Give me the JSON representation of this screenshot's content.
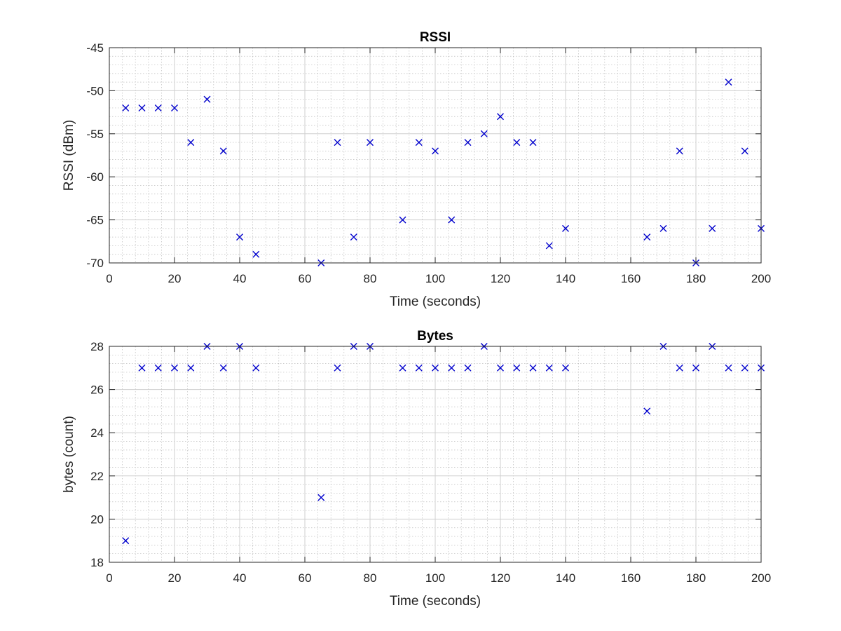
{
  "colors": {
    "marker": "#0000cc",
    "axis": "#262626",
    "grid_major": "#cfcfcf",
    "grid_minor": "#bdbdbd",
    "background": "#ffffff"
  },
  "chart_data": [
    {
      "type": "scatter",
      "title": "RSSI",
      "xlabel": "Time (seconds)",
      "ylabel": "RSSI (dBm)",
      "xlim": [
        0,
        200
      ],
      "ylim": [
        -70,
        -45
      ],
      "xticks": [
        0,
        20,
        40,
        60,
        80,
        100,
        120,
        140,
        160,
        180,
        200
      ],
      "yticks": [
        -70,
        -65,
        -60,
        -55,
        -50,
        -45
      ],
      "grid": "major and minor",
      "marker": "x",
      "series": [
        {
          "x": [
            5,
            10,
            15,
            20,
            25,
            30,
            35,
            40,
            45,
            65,
            70,
            75,
            80,
            90,
            95,
            100,
            105,
            110,
            115,
            120,
            125,
            130,
            135,
            140,
            165,
            170,
            175,
            180,
            185,
            190,
            195,
            200
          ],
          "y": [
            -52,
            -52,
            -52,
            -52,
            -56,
            -51,
            -57,
            -67,
            -69,
            -70,
            -56,
            -67,
            -56,
            -65,
            -56,
            -57,
            -65,
            -56,
            -55,
            -53,
            -56,
            -56,
            -68,
            -66,
            -67,
            -66,
            -57,
            -70,
            -66,
            -49,
            -57,
            -66
          ]
        }
      ]
    },
    {
      "type": "scatter",
      "title": "Bytes",
      "xlabel": "Time (seconds)",
      "ylabel": "bytes (count)",
      "xlim": [
        0,
        200
      ],
      "ylim": [
        18,
        28
      ],
      "xticks": [
        0,
        20,
        40,
        60,
        80,
        100,
        120,
        140,
        160,
        180,
        200
      ],
      "yticks": [
        18,
        20,
        22,
        24,
        26,
        28
      ],
      "grid": "major and minor",
      "marker": "x",
      "series": [
        {
          "x": [
            5,
            10,
            15,
            20,
            25,
            30,
            35,
            40,
            45,
            65,
            70,
            75,
            80,
            90,
            95,
            100,
            105,
            110,
            115,
            120,
            125,
            130,
            135,
            140,
            165,
            170,
            175,
            180,
            185,
            190,
            195,
            200
          ],
          "y": [
            19,
            27,
            27,
            27,
            27,
            28,
            27,
            28,
            27,
            21,
            27,
            28,
            28,
            27,
            27,
            27,
            27,
            27,
            28,
            27,
            27,
            27,
            27,
            27,
            25,
            28,
            27,
            27,
            28,
            27,
            27,
            27
          ]
        }
      ]
    }
  ]
}
